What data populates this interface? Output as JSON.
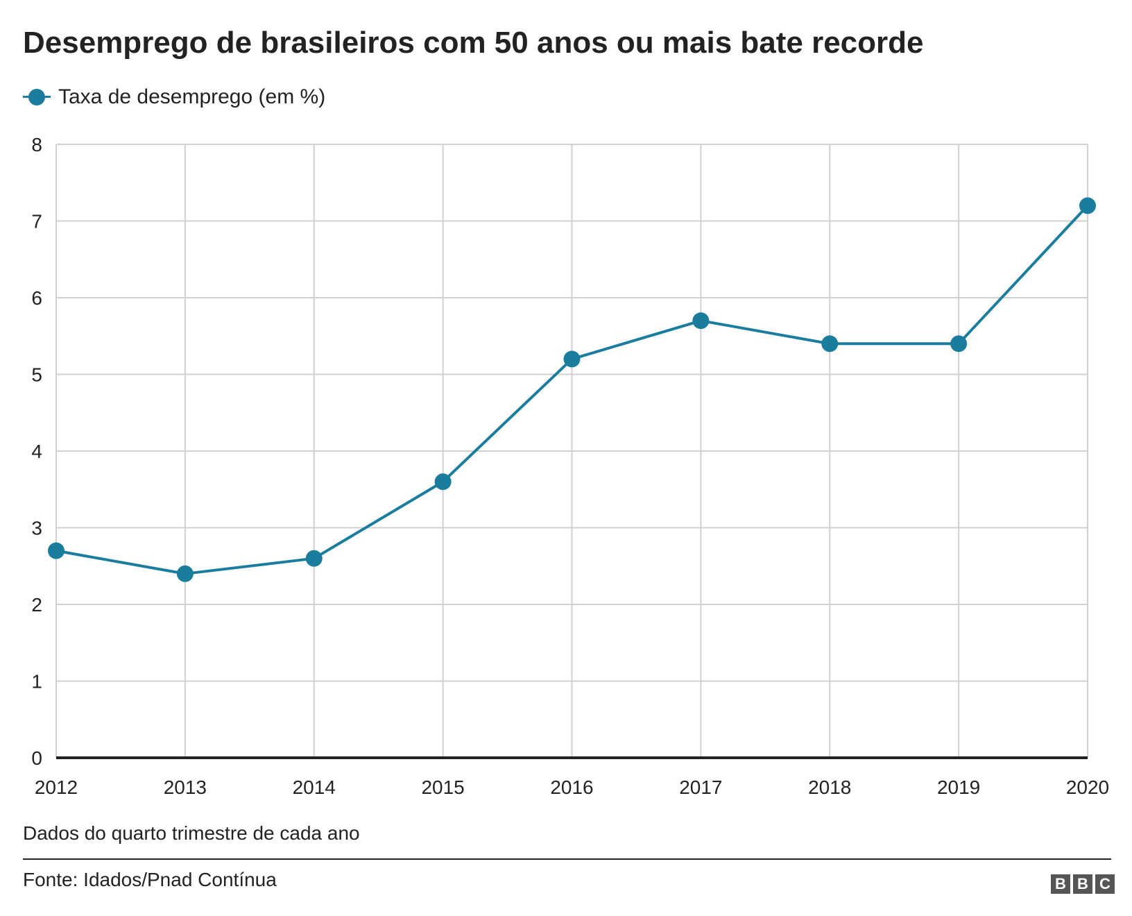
{
  "title": "Desemprego de brasileiros com 50 anos ou mais bate recorde",
  "legend": {
    "label": "Taxa de desemprego (em %)",
    "icon": "line-dot-marker"
  },
  "colors": {
    "series": "#1b7d9e",
    "grid": "#d0d0d0",
    "axis": "#222222",
    "text": "#222222",
    "logo_bg": "#555555"
  },
  "chart_data": {
    "type": "line",
    "title": "Desemprego de brasileiros com 50 anos ou mais bate recorde",
    "xlabel": "",
    "ylabel": "",
    "x": [
      "2012",
      "2013",
      "2014",
      "2015",
      "2016",
      "2017",
      "2018",
      "2019",
      "2020"
    ],
    "series": [
      {
        "name": "Taxa de desemprego (em %)",
        "values": [
          2.7,
          2.4,
          2.6,
          3.6,
          5.2,
          5.7,
          5.4,
          5.4,
          7.2
        ]
      }
    ],
    "ylim": [
      0,
      8
    ],
    "yticks": [
      0,
      1,
      2,
      3,
      4,
      5,
      6,
      7,
      8
    ],
    "grid": true,
    "legend_position": "top-left"
  },
  "note": "Dados do quarto trimestre de cada ano",
  "source": "Fonte: Idados/Pnad Contínua",
  "logo": {
    "letters": [
      "B",
      "B",
      "C"
    ]
  }
}
